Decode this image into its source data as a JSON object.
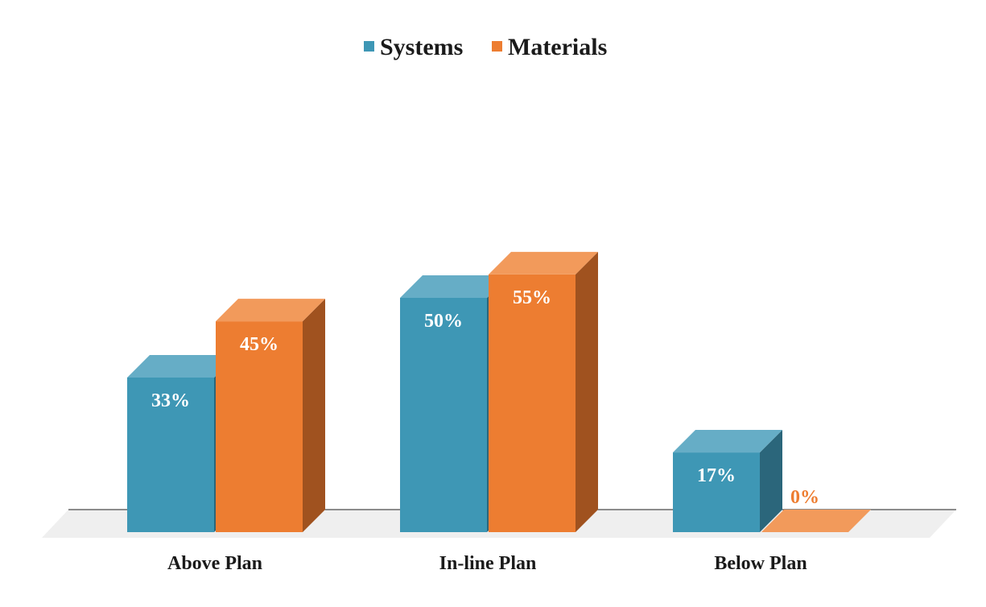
{
  "chart_data": {
    "type": "bar",
    "style": "3d-column",
    "title": "",
    "xlabel": "",
    "ylabel": "",
    "categories": [
      "Above Plan",
      "In-line Plan",
      "Below Plan"
    ],
    "series": [
      {
        "name": "Systems",
        "values": [
          33,
          50,
          17
        ],
        "labels": [
          "33%",
          "50%",
          "17%"
        ],
        "color": "#3e97b5"
      },
      {
        "name": "Materials",
        "values": [
          45,
          55,
          0
        ],
        "labels": [
          "45%",
          "55%",
          "0%"
        ],
        "color": "#ed7d31"
      }
    ],
    "ylim": [
      0,
      60
    ],
    "grid": false,
    "legend": "top-center"
  },
  "colors": {
    "systems_front": "#3e97b5",
    "systems_top": "#66adc6",
    "systems_side": "#2b667b",
    "materials_front": "#ed7d31",
    "materials_top": "#f29a5b",
    "materials_side": "#a0521f",
    "floor": "#efefef",
    "zero_label": "#ed7d31",
    "text": "#1a1a1a"
  }
}
